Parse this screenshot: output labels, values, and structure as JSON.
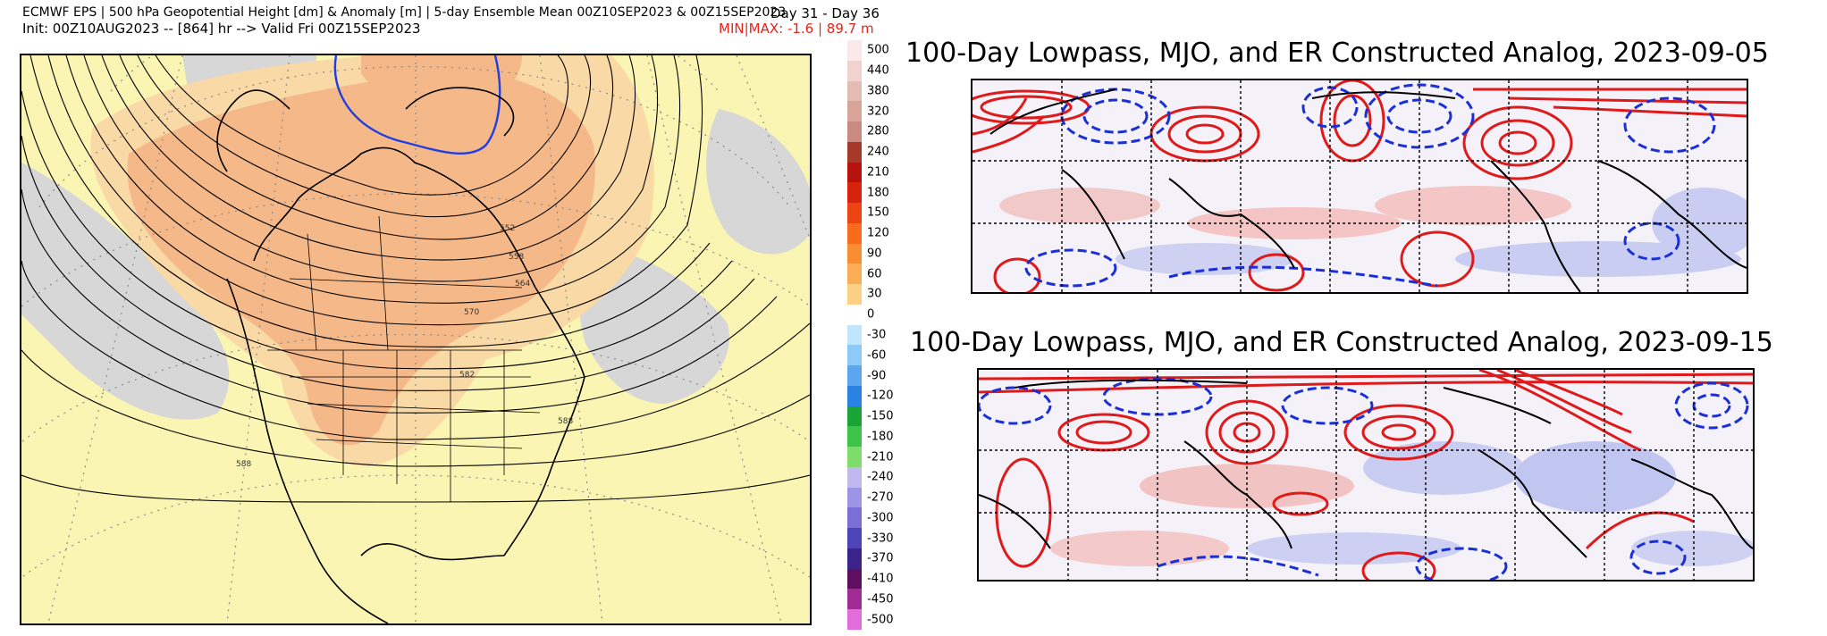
{
  "header": {
    "line1": "ECMWF EPS | 500 hPa Geopotential Height [dm] & Anomaly [m] | 5-day Ensemble Mean 00Z10SEP2023 & 00Z15SEP2023",
    "line2": "Init: 00Z10AUG2023 -- [864] hr --> Valid Fri 00Z15SEP2023",
    "day_range": "Day 31 - Day 36",
    "minmax": "MIN|MAX: -1.6 | 89.7 m"
  },
  "map": {
    "contour_labels": [
      "552",
      "558",
      "564",
      "570",
      "582",
      "588",
      "588"
    ],
    "colors": {
      "land_background": "#fbf5b4",
      "positive_anomaly": "#f5b889",
      "weak_positive": "#f9d9a6",
      "negative_anomaly": "#d7d7d7",
      "contour_540": "#1f3fe0"
    }
  },
  "colorbar": {
    "labels": [
      "500",
      "440",
      "380",
      "320",
      "280",
      "240",
      "210",
      "180",
      "150",
      "120",
      "90",
      "60",
      "30",
      "0",
      "-30",
      "-60",
      "-90",
      "-120",
      "-150",
      "-180",
      "-210",
      "-240",
      "-270",
      "-300",
      "-330",
      "-370",
      "-410",
      "-450",
      "-500"
    ],
    "colors": [
      "#fbe9e9",
      "#f0d3cf",
      "#e5bcb4",
      "#d9a59b",
      "#c98a7f",
      "#a5392a",
      "#b8120e",
      "#d7230d",
      "#ee4414",
      "#f86a1e",
      "#f98d34",
      "#f9ad55",
      "#fbcf84",
      "#ffffff",
      "#bfe6fb",
      "#8ccaf7",
      "#5aa7f0",
      "#2c82e4",
      "#1aa336",
      "#3dc24a",
      "#7fdc6c",
      "#c0b8ef",
      "#9d94e3",
      "#7a6fd5",
      "#4e44b9",
      "#3a238a",
      "#5f0f60",
      "#a12c94",
      "#e16ddb"
    ]
  },
  "panels": [
    {
      "title": "100-Day Lowpass, MJO, and ER Constructed Analog, 2023-09-05"
    },
    {
      "title": "100-Day Lowpass, MJO, and ER Constructed Analog, 2023-09-15"
    }
  ]
}
